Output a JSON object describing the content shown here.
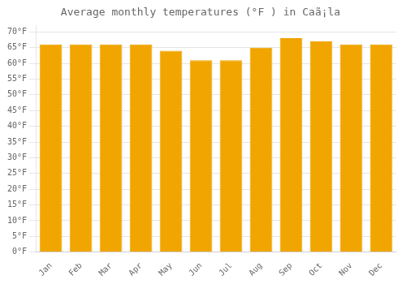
{
  "chart_data": {
    "type": "bar",
    "title": "Average monthly temperatures (°F ) in Caã¡la",
    "categories": [
      "Jan",
      "Feb",
      "Mar",
      "Apr",
      "May",
      "Jun",
      "Jul",
      "Aug",
      "Sep",
      "Oct",
      "Nov",
      "Dec"
    ],
    "values": [
      66,
      66,
      66,
      66,
      64,
      61,
      61,
      65,
      68,
      67,
      66,
      66
    ],
    "color": "#F0A500",
    "ylim": [
      0,
      72
    ],
    "yticks": [
      {
        "value": 0,
        "label": "0°F"
      },
      {
        "value": 5,
        "label": "5°F"
      },
      {
        "value": 10,
        "label": "10°F"
      },
      {
        "value": 15,
        "label": "15°F"
      },
      {
        "value": 20,
        "label": "20°F"
      },
      {
        "value": 25,
        "label": "25°F"
      },
      {
        "value": 30,
        "label": "30°F"
      },
      {
        "value": 35,
        "label": "35°F"
      },
      {
        "value": 40,
        "label": "40°F"
      },
      {
        "value": 45,
        "label": "45°F"
      },
      {
        "value": 50,
        "label": "50°F"
      },
      {
        "value": 55,
        "label": "55°F"
      },
      {
        "value": 60,
        "label": "60°F"
      },
      {
        "value": 65,
        "label": "65°F"
      },
      {
        "value": 70,
        "label": "70°F"
      }
    ],
    "grid": true
  }
}
